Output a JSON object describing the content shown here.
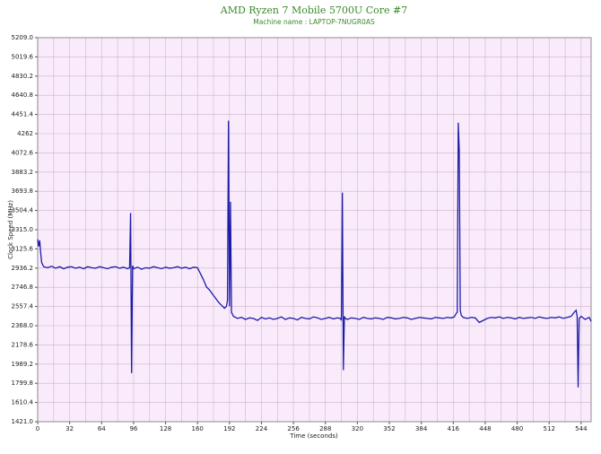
{
  "chart_data": {
    "type": "line",
    "title": "AMD Ryzen 7 Mobile 5700U Core #7",
    "subtitle": "Machine name : LAPTOP-7NUGR0AS",
    "y_label": "Clock Speed (MHz)",
    "x_label": "Time (seconds)",
    "color": "#1c1ca8",
    "grid": true,
    "xlim": [
      0,
      554
    ],
    "ylim": [
      1421,
      5209
    ],
    "xticks": [
      0,
      32,
      64,
      96,
      128,
      160,
      192,
      224,
      256,
      288,
      320,
      352,
      384,
      416,
      448,
      480,
      512,
      544
    ],
    "yticks": [
      {
        "value": 1421,
        "label": "1421.0"
      },
      1610.4,
      1799.8,
      1989.2,
      2178.6,
      {
        "value": 2368,
        "label": "2368.0"
      },
      2557.4,
      2746.8,
      2936.2,
      3125.6,
      {
        "value": 3315,
        "label": "3315.0"
      },
      3504.4,
      3693.8,
      3883.2,
      4072.6,
      4262,
      4451.4,
      4640.8,
      4830.2,
      5019.6,
      {
        "value": 5209,
        "label": "5209.0"
      }
    ],
    "x": [
      0,
      1,
      2,
      3,
      4,
      6,
      10,
      14,
      18,
      22,
      26,
      30,
      34,
      38,
      42,
      46,
      50,
      54,
      58,
      62,
      66,
      70,
      74,
      78,
      82,
      86,
      90,
      92,
      93,
      94,
      95,
      96,
      100,
      104,
      108,
      112,
      116,
      120,
      124,
      128,
      132,
      136,
      140,
      144,
      148,
      152,
      156,
      160,
      163,
      166,
      169,
      172,
      175,
      178,
      181,
      184,
      187,
      189,
      190,
      191,
      192,
      193,
      194,
      196,
      200,
      204,
      208,
      212,
      216,
      220,
      224,
      228,
      232,
      236,
      240,
      244,
      248,
      252,
      256,
      260,
      264,
      268,
      272,
      276,
      280,
      284,
      288,
      292,
      296,
      300,
      303,
      304,
      305,
      306,
      307,
      308,
      310,
      314,
      318,
      322,
      326,
      330,
      334,
      338,
      342,
      346,
      350,
      354,
      358,
      362,
      366,
      370,
      374,
      378,
      382,
      386,
      390,
      394,
      398,
      402,
      406,
      410,
      414,
      417,
      419,
      420,
      421,
      422,
      423,
      424,
      426,
      430,
      434,
      438,
      442,
      446,
      450,
      454,
      458,
      462,
      466,
      470,
      474,
      478,
      482,
      486,
      490,
      494,
      498,
      502,
      506,
      510,
      514,
      518,
      522,
      526,
      530,
      534,
      537,
      539,
      540,
      541,
      542,
      544,
      548,
      552,
      554
    ],
    "values": [
      3220,
      3150,
      3210,
      3090,
      2990,
      2950,
      2940,
      2955,
      2935,
      2950,
      2930,
      2945,
      2950,
      2935,
      2945,
      2930,
      2950,
      2940,
      2935,
      2950,
      2940,
      2930,
      2945,
      2950,
      2935,
      2945,
      2930,
      2940,
      3480,
      1900,
      2960,
      2930,
      2945,
      2925,
      2940,
      2935,
      2950,
      2940,
      2930,
      2945,
      2935,
      2940,
      2950,
      2935,
      2945,
      2930,
      2945,
      2940,
      2880,
      2820,
      2750,
      2720,
      2680,
      2640,
      2600,
      2570,
      2540,
      2560,
      2620,
      4390,
      2560,
      3590,
      2500,
      2460,
      2440,
      2450,
      2430,
      2445,
      2440,
      2420,
      2450,
      2435,
      2445,
      2430,
      2440,
      2455,
      2430,
      2445,
      2440,
      2425,
      2450,
      2440,
      2435,
      2455,
      2445,
      2430,
      2440,
      2450,
      2435,
      2445,
      2440,
      2420,
      3680,
      1930,
      2460,
      2440,
      2430,
      2445,
      2440,
      2430,
      2450,
      2440,
      2435,
      2445,
      2440,
      2430,
      2450,
      2445,
      2435,
      2440,
      2450,
      2445,
      2430,
      2440,
      2450,
      2445,
      2440,
      2435,
      2450,
      2445,
      2440,
      2450,
      2445,
      2455,
      2490,
      2500,
      4370,
      4100,
      2520,
      2470,
      2450,
      2440,
      2450,
      2445,
      2400,
      2420,
      2440,
      2450,
      2445,
      2455,
      2440,
      2450,
      2445,
      2435,
      2450,
      2440,
      2445,
      2450,
      2440,
      2455,
      2445,
      2440,
      2450,
      2445,
      2455,
      2440,
      2450,
      2460,
      2500,
      2520,
      2460,
      1760,
      2440,
      2460,
      2430,
      2450,
      2410
    ]
  }
}
